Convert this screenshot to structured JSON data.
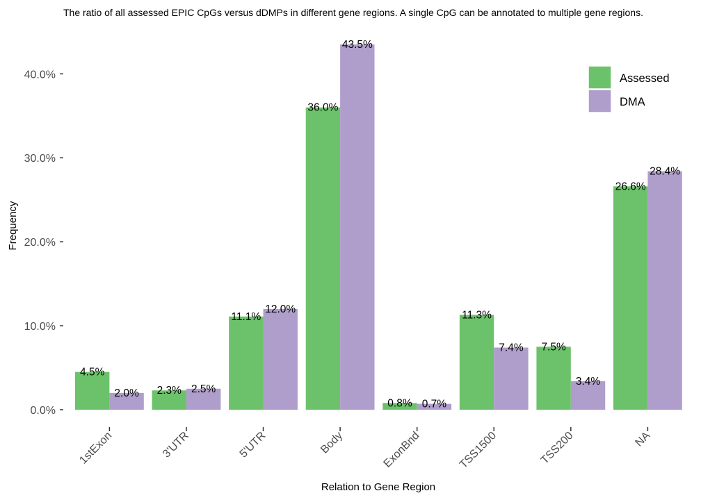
{
  "chart_data": {
    "type": "bar",
    "title": "The ratio of all assessed EPIC CpGs versus dDMPs in different gene regions. A single CpG can be annotated to multiple gene regions.",
    "xlabel": "Relation to Gene Region",
    "ylabel": "Frequency",
    "categories": [
      "1stExon",
      "3'UTR",
      "5'UTR",
      "Body",
      "ExonBnd",
      "TSS1500",
      "TSS200",
      "NA"
    ],
    "series": [
      {
        "name": "Assessed",
        "color": "#6cc26a",
        "values": [
          4.5,
          2.3,
          11.1,
          36.0,
          0.8,
          11.3,
          7.5,
          26.6
        ],
        "labels": [
          "4.5%",
          "2.3%",
          "11.1%",
          "36.0%",
          "0.8%",
          "11.3%",
          "7.5%",
          "26.6%"
        ]
      },
      {
        "name": "DMA",
        "color": "#af9dcb",
        "values": [
          2.0,
          2.5,
          12.0,
          43.5,
          0.7,
          7.4,
          3.4,
          28.4
        ],
        "labels": [
          "2.0%",
          "2.5%",
          "12.0%",
          "43.5%",
          "0.7%",
          "7.4%",
          "3.4%",
          "28.4%"
        ]
      }
    ],
    "yticks": [
      0,
      10,
      20,
      30,
      40
    ],
    "ytick_labels": [
      "0.0%",
      "10.0%",
      "20.0%",
      "30.0%",
      "40.0%"
    ],
    "ylim": [
      0,
      43.5
    ],
    "grid": false,
    "legend_position": "top-right"
  }
}
